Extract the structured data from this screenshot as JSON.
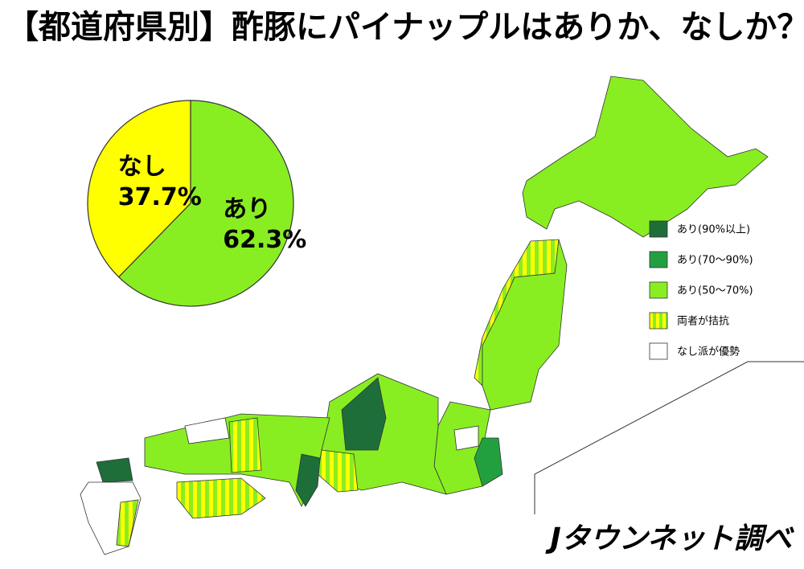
{
  "chart_data": {
    "type": "pie",
    "title": "【都道府県別】酢豚にパイナップルはありか、なしか？",
    "categories": [
      "あり",
      "なし"
    ],
    "values": [
      62.3,
      37.7
    ],
    "value_labels": [
      "62.3%",
      "37.7%"
    ],
    "colors": [
      "#88ee22",
      "#ffff00"
    ]
  },
  "map_legend": {
    "items": [
      {
        "label": "あり(90%以上)",
        "color": "#1e6e3a"
      },
      {
        "label": "あり(70〜90%)",
        "color": "#22a040"
      },
      {
        "label": "あり(50〜70%)",
        "color": "#88ee22"
      },
      {
        "label": "両者が拮抗",
        "color": "#88ee22",
        "stripe": "#ffff00"
      },
      {
        "label": "なし派が優勢",
        "color": "#ffffff"
      }
    ]
  },
  "credit": "Jタウンネット調べ"
}
